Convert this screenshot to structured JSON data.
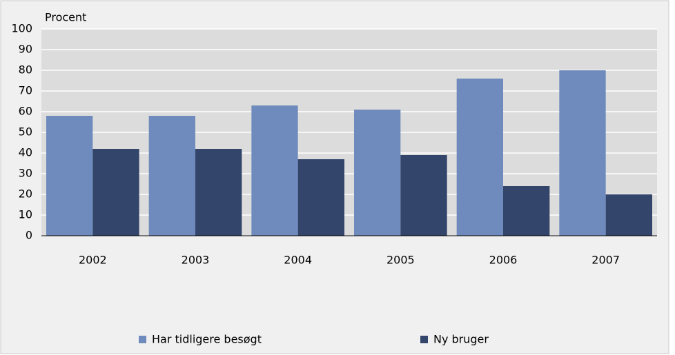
{
  "chart_data": {
    "type": "bar",
    "y_label": "Procent",
    "categories": [
      "2002",
      "2003",
      "2004",
      "2005",
      "2006",
      "2007"
    ],
    "series": [
      {
        "name": "Har tidligere besøgt",
        "color": "#6f8bbd",
        "values": [
          58,
          58,
          63,
          61,
          76,
          80
        ]
      },
      {
        "name": "Ny bruger",
        "color": "#33456b",
        "values": [
          42,
          42,
          37,
          39,
          24,
          20
        ]
      }
    ],
    "ylim": [
      0,
      100
    ],
    "yticks": [
      0,
      10,
      20,
      30,
      40,
      50,
      60,
      70,
      80,
      90,
      100
    ],
    "grid": true,
    "legend": "bottom"
  }
}
